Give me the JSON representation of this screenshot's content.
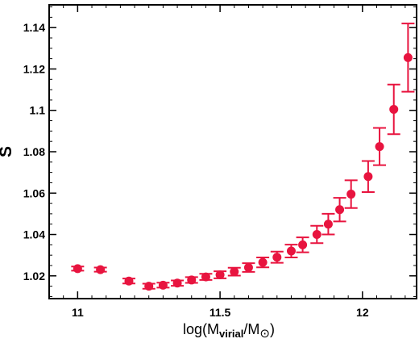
{
  "chart_data": {
    "type": "scatter",
    "xlabel": {
      "prefix": "log(M",
      "sub1": "virial",
      "mid": "/M",
      "symbol": "⊙",
      "suffix": ")"
    },
    "ylabel": "S",
    "xlim": [
      10.9,
      12.19
    ],
    "ylim": [
      1.009,
      1.151
    ],
    "xticks": [
      11,
      11.5,
      12
    ],
    "xtick_labels": [
      "11",
      "11.5",
      "12"
    ],
    "yticks": [
      1.02,
      1.04,
      1.06,
      1.08,
      1.1,
      1.12,
      1.14
    ],
    "ytick_labels": [
      "1.02",
      "1.04",
      "1.06",
      "1.08",
      "1.1",
      "1.12",
      "1.14"
    ],
    "marker_color": "#e8143f",
    "series": [
      {
        "x": [
          11.0,
          11.08,
          11.18,
          11.25,
          11.3,
          11.35,
          11.4,
          11.45,
          11.5,
          11.55,
          11.6,
          11.65,
          11.7,
          11.75,
          11.79,
          11.84,
          11.88,
          11.92,
          11.96,
          12.02,
          12.06,
          12.11,
          12.16
        ],
        "y": [
          1.0235,
          1.023,
          1.0175,
          1.015,
          1.0155,
          1.0165,
          1.018,
          1.0195,
          1.0205,
          1.022,
          1.024,
          1.0265,
          1.029,
          1.032,
          1.035,
          1.04,
          1.045,
          1.052,
          1.0595,
          1.068,
          1.0825,
          1.1005,
          1.1255
        ],
        "yerr": [
          0.001,
          0.001,
          0.0012,
          0.0012,
          0.0012,
          0.0013,
          0.0014,
          0.0015,
          0.0017,
          0.0019,
          0.0021,
          0.0024,
          0.0027,
          0.0031,
          0.0036,
          0.0042,
          0.005,
          0.0057,
          0.0067,
          0.0075,
          0.009,
          0.012,
          0.0165
        ]
      }
    ]
  }
}
